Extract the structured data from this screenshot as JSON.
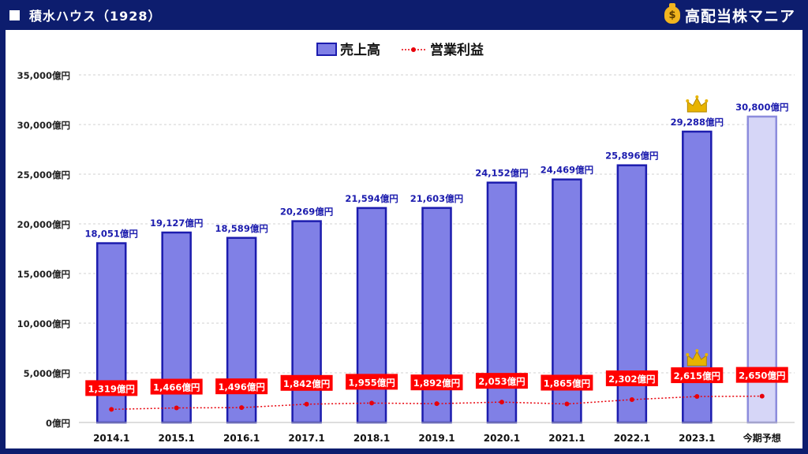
{
  "header": {
    "title": "積水ハウス（1928）",
    "brand": "高配当株マニア",
    "brand_icon": "money-bag-icon"
  },
  "legend": {
    "bar_label": "売上高",
    "line_label": "営業利益"
  },
  "colors": {
    "bar_fill": "#8080e6",
    "bar_stroke": "#1c1cae",
    "forecast_fill": "#d6d6f7",
    "forecast_stroke": "#8c8cdc",
    "line": "#e8000a",
    "label_box": "#ff0000",
    "value_text": "#1c1cae",
    "crown": "#e8b400"
  },
  "chart_data": {
    "type": "bar",
    "categories": [
      "2014.1",
      "2015.1",
      "2016.1",
      "2017.1",
      "2018.1",
      "2019.1",
      "2020.1",
      "2021.1",
      "2022.1",
      "2023.1",
      "今期予想"
    ],
    "series": [
      {
        "name": "売上高",
        "type": "bar",
        "values": [
          18051,
          19127,
          18589,
          20269,
          21594,
          21603,
          24152,
          24469,
          25896,
          29288,
          30800
        ],
        "labels": [
          "18,051億円",
          "19,127億円",
          "18,589億円",
          "20,269億円",
          "21,594億円",
          "21,603億円",
          "24,152億円",
          "24,469億円",
          "25,896億円",
          "29,288億円",
          "30,800億円"
        ]
      },
      {
        "name": "営業利益",
        "type": "line",
        "values": [
          1319,
          1466,
          1496,
          1842,
          1955,
          1892,
          2053,
          1865,
          2302,
          2615,
          2650
        ],
        "labels": [
          "1,319億円",
          "1,466億円",
          "1,496億円",
          "1,842億円",
          "1,955億円",
          "1,892億円",
          "2,053億円",
          "1,865億円",
          "2,302億円",
          "2,615億円",
          "2,650億円"
        ]
      }
    ],
    "forecast_index": 10,
    "crowns": [
      {
        "series": "売上高",
        "index": 9
      },
      {
        "series": "営業利益",
        "index": 9
      }
    ],
    "yticks": [
      0,
      5000,
      10000,
      15000,
      20000,
      25000,
      30000,
      35000
    ],
    "ytick_labels": [
      "0億円",
      "5,000億円",
      "10,000億円",
      "15,000億円",
      "20,000億円",
      "25,000億円",
      "30,000億円",
      "35,000億円"
    ],
    "ylim": [
      0,
      35000
    ],
    "grid": true,
    "legend_position": "top-center"
  }
}
